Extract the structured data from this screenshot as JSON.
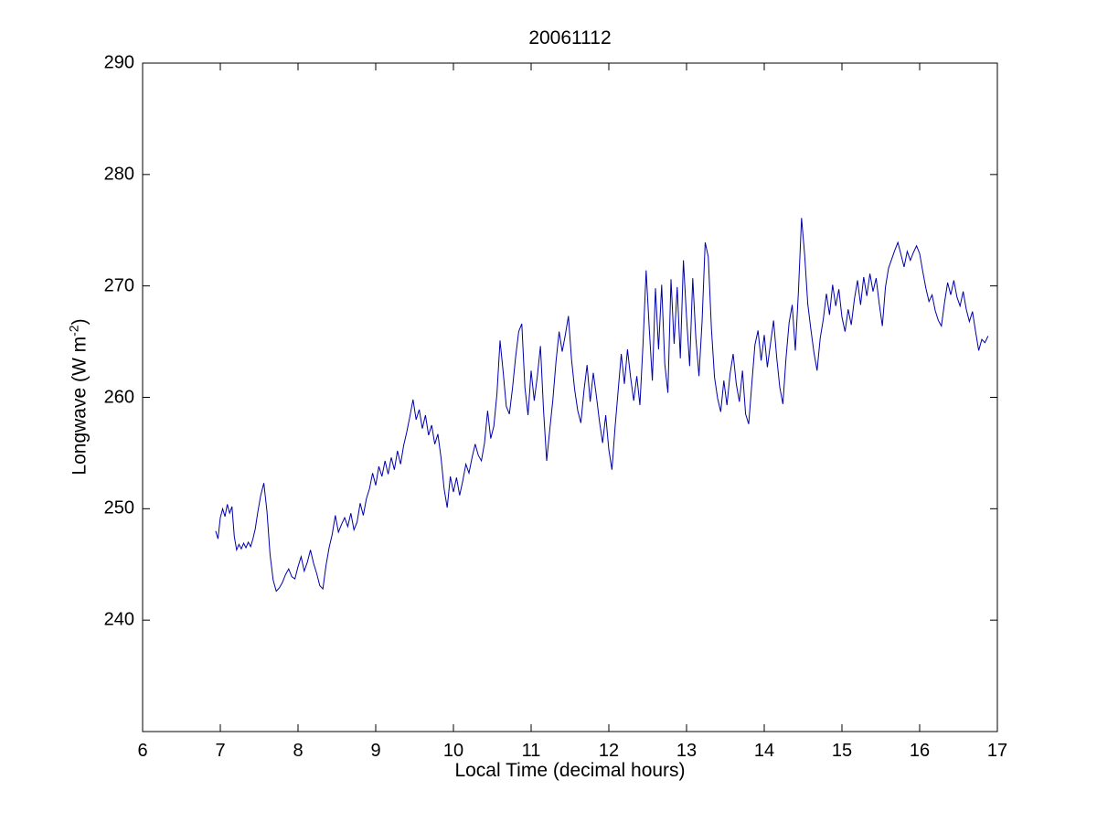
{
  "title": "20061112",
  "axes": {
    "xlabel": "Local Time (decimal hours)",
    "ylabel_main": "Longwave (W m",
    "ylabel_sup": "-2",
    "ylabel_end": ")",
    "x_ticks": [
      6,
      7,
      8,
      9,
      10,
      11,
      12,
      13,
      14,
      15,
      16,
      17
    ],
    "x_tick_labels": [
      "6",
      "7",
      "8",
      "9",
      "10",
      "11",
      "12",
      "13",
      "14",
      "15",
      "16",
      "17"
    ],
    "y_ticks": [
      240,
      250,
      260,
      270,
      280,
      290
    ],
    "y_tick_labels": [
      "240",
      "250",
      "260",
      "270",
      "280",
      "290"
    ]
  },
  "chart_data": {
    "type": "line",
    "title": "20061112",
    "xlabel": "Local Time (decimal hours)",
    "ylabel": "Longwave (W m^-2)",
    "xlim": [
      6,
      17
    ],
    "ylim": [
      230,
      290
    ],
    "grid": false,
    "legend": "none",
    "line_color": "#0000AA",
    "axis_color": "#000000",
    "series": [
      {
        "name": "longwave",
        "points": [
          [
            6.94,
            248.0
          ],
          [
            6.97,
            247.3
          ],
          [
            7.0,
            249.2
          ],
          [
            7.03,
            250.0
          ],
          [
            7.06,
            249.3
          ],
          [
            7.09,
            250.4
          ],
          [
            7.12,
            249.6
          ],
          [
            7.15,
            250.2
          ],
          [
            7.18,
            247.5
          ],
          [
            7.21,
            246.3
          ],
          [
            7.24,
            246.8
          ],
          [
            7.27,
            246.4
          ],
          [
            7.3,
            246.9
          ],
          [
            7.33,
            246.5
          ],
          [
            7.36,
            247.0
          ],
          [
            7.39,
            246.6
          ],
          [
            7.42,
            247.3
          ],
          [
            7.45,
            248.2
          ],
          [
            7.48,
            249.6
          ],
          [
            7.52,
            251.2
          ],
          [
            7.56,
            252.3
          ],
          [
            7.6,
            249.8
          ],
          [
            7.64,
            245.9
          ],
          [
            7.68,
            243.6
          ],
          [
            7.72,
            242.6
          ],
          [
            7.76,
            242.9
          ],
          [
            7.8,
            243.4
          ],
          [
            7.84,
            244.1
          ],
          [
            7.88,
            244.6
          ],
          [
            7.92,
            243.9
          ],
          [
            7.96,
            243.7
          ],
          [
            8.0,
            244.8
          ],
          [
            8.04,
            245.7
          ],
          [
            8.08,
            244.4
          ],
          [
            8.12,
            245.2
          ],
          [
            8.16,
            246.3
          ],
          [
            8.2,
            245.1
          ],
          [
            8.24,
            244.2
          ],
          [
            8.28,
            243.1
          ],
          [
            8.32,
            242.8
          ],
          [
            8.36,
            244.9
          ],
          [
            8.4,
            246.5
          ],
          [
            8.44,
            247.7
          ],
          [
            8.48,
            249.4
          ],
          [
            8.52,
            247.9
          ],
          [
            8.56,
            248.6
          ],
          [
            8.6,
            249.2
          ],
          [
            8.64,
            248.4
          ],
          [
            8.68,
            249.6
          ],
          [
            8.72,
            248.1
          ],
          [
            8.76,
            248.8
          ],
          [
            8.8,
            250.5
          ],
          [
            8.84,
            249.4
          ],
          [
            8.88,
            250.9
          ],
          [
            8.92,
            251.8
          ],
          [
            8.96,
            253.2
          ],
          [
            9.0,
            252.1
          ],
          [
            9.04,
            253.8
          ],
          [
            9.08,
            252.9
          ],
          [
            9.12,
            254.3
          ],
          [
            9.16,
            253.1
          ],
          [
            9.2,
            254.6
          ],
          [
            9.24,
            253.5
          ],
          [
            9.28,
            255.2
          ],
          [
            9.32,
            254.0
          ],
          [
            9.36,
            255.7
          ],
          [
            9.4,
            256.9
          ],
          [
            9.44,
            258.3
          ],
          [
            9.48,
            259.8
          ],
          [
            9.52,
            258.0
          ],
          [
            9.56,
            258.9
          ],
          [
            9.6,
            257.2
          ],
          [
            9.64,
            258.4
          ],
          [
            9.68,
            256.6
          ],
          [
            9.72,
            257.5
          ],
          [
            9.76,
            255.8
          ],
          [
            9.8,
            256.7
          ],
          [
            9.84,
            254.6
          ],
          [
            9.88,
            251.8
          ],
          [
            9.92,
            250.1
          ],
          [
            9.96,
            252.9
          ],
          [
            10.0,
            251.5
          ],
          [
            10.04,
            252.8
          ],
          [
            10.08,
            251.2
          ],
          [
            10.12,
            252.5
          ],
          [
            10.16,
            254.0
          ],
          [
            10.2,
            253.2
          ],
          [
            10.24,
            254.6
          ],
          [
            10.28,
            255.8
          ],
          [
            10.32,
            254.8
          ],
          [
            10.36,
            254.3
          ],
          [
            10.4,
            255.9
          ],
          [
            10.44,
            258.8
          ],
          [
            10.48,
            256.3
          ],
          [
            10.52,
            257.4
          ],
          [
            10.56,
            260.3
          ],
          [
            10.6,
            265.1
          ],
          [
            10.64,
            262.3
          ],
          [
            10.68,
            259.2
          ],
          [
            10.72,
            258.5
          ],
          [
            10.76,
            260.8
          ],
          [
            10.8,
            263.6
          ],
          [
            10.84,
            265.9
          ],
          [
            10.88,
            266.6
          ],
          [
            10.92,
            260.9
          ],
          [
            10.96,
            258.4
          ],
          [
            11.0,
            262.4
          ],
          [
            11.04,
            259.7
          ],
          [
            11.08,
            261.9
          ],
          [
            11.12,
            264.6
          ],
          [
            11.16,
            258.8
          ],
          [
            11.2,
            254.3
          ],
          [
            11.24,
            257.1
          ],
          [
            11.28,
            259.8
          ],
          [
            11.32,
            263.2
          ],
          [
            11.36,
            265.9
          ],
          [
            11.4,
            264.1
          ],
          [
            11.44,
            265.6
          ],
          [
            11.48,
            267.3
          ],
          [
            11.52,
            263.4
          ],
          [
            11.56,
            260.7
          ],
          [
            11.6,
            258.8
          ],
          [
            11.64,
            257.7
          ],
          [
            11.68,
            260.6
          ],
          [
            11.72,
            262.9
          ],
          [
            11.76,
            259.6
          ],
          [
            11.8,
            262.2
          ],
          [
            11.84,
            260.1
          ],
          [
            11.88,
            257.8
          ],
          [
            11.92,
            255.9
          ],
          [
            11.96,
            258.4
          ],
          [
            12.0,
            255.3
          ],
          [
            12.04,
            253.5
          ],
          [
            12.08,
            257.3
          ],
          [
            12.12,
            260.6
          ],
          [
            12.16,
            263.9
          ],
          [
            12.2,
            261.2
          ],
          [
            12.24,
            264.3
          ],
          [
            12.28,
            261.8
          ],
          [
            12.32,
            259.7
          ],
          [
            12.36,
            261.9
          ],
          [
            12.4,
            259.3
          ],
          [
            12.44,
            264.8
          ],
          [
            12.48,
            271.4
          ],
          [
            12.52,
            266.2
          ],
          [
            12.56,
            261.5
          ],
          [
            12.6,
            269.8
          ],
          [
            12.64,
            264.3
          ],
          [
            12.68,
            270.1
          ],
          [
            12.72,
            263.0
          ],
          [
            12.76,
            260.4
          ],
          [
            12.8,
            270.6
          ],
          [
            12.84,
            264.8
          ],
          [
            12.88,
            269.9
          ],
          [
            12.92,
            263.5
          ],
          [
            12.96,
            272.3
          ],
          [
            13.0,
            267.2
          ],
          [
            13.04,
            262.8
          ],
          [
            13.08,
            270.7
          ],
          [
            13.12,
            265.3
          ],
          [
            13.16,
            261.9
          ],
          [
            13.2,
            266.8
          ],
          [
            13.24,
            273.9
          ],
          [
            13.28,
            272.6
          ],
          [
            13.32,
            266.2
          ],
          [
            13.36,
            261.8
          ],
          [
            13.4,
            259.9
          ],
          [
            13.44,
            258.7
          ],
          [
            13.48,
            261.5
          ],
          [
            13.52,
            259.3
          ],
          [
            13.56,
            262.1
          ],
          [
            13.6,
            263.9
          ],
          [
            13.64,
            261.2
          ],
          [
            13.68,
            259.6
          ],
          [
            13.72,
            262.4
          ],
          [
            13.76,
            258.5
          ],
          [
            13.8,
            257.6
          ],
          [
            13.84,
            261.2
          ],
          [
            13.88,
            264.7
          ],
          [
            13.92,
            266.0
          ],
          [
            13.96,
            263.3
          ],
          [
            14.0,
            265.6
          ],
          [
            14.04,
            262.7
          ],
          [
            14.08,
            264.8
          ],
          [
            14.12,
            266.9
          ],
          [
            14.16,
            263.6
          ],
          [
            14.2,
            260.9
          ],
          [
            14.24,
            259.4
          ],
          [
            14.28,
            263.5
          ],
          [
            14.32,
            266.7
          ],
          [
            14.36,
            268.3
          ],
          [
            14.4,
            264.2
          ],
          [
            14.44,
            269.5
          ],
          [
            14.48,
            276.1
          ],
          [
            14.52,
            272.8
          ],
          [
            14.56,
            268.4
          ],
          [
            14.6,
            266.1
          ],
          [
            14.64,
            264.0
          ],
          [
            14.68,
            262.4
          ],
          [
            14.72,
            265.3
          ],
          [
            14.76,
            267.0
          ],
          [
            14.8,
            269.3
          ],
          [
            14.84,
            267.4
          ],
          [
            14.88,
            270.1
          ],
          [
            14.92,
            268.2
          ],
          [
            14.96,
            269.7
          ],
          [
            15.0,
            267.2
          ],
          [
            15.04,
            265.9
          ],
          [
            15.08,
            267.9
          ],
          [
            15.12,
            266.5
          ],
          [
            15.16,
            268.8
          ],
          [
            15.2,
            270.5
          ],
          [
            15.24,
            268.3
          ],
          [
            15.28,
            270.8
          ],
          [
            15.32,
            269.1
          ],
          [
            15.36,
            271.1
          ],
          [
            15.4,
            269.5
          ],
          [
            15.44,
            270.7
          ],
          [
            15.48,
            268.4
          ],
          [
            15.52,
            266.4
          ],
          [
            15.56,
            269.9
          ],
          [
            15.6,
            271.6
          ],
          [
            15.64,
            272.4
          ],
          [
            15.68,
            273.2
          ],
          [
            15.72,
            273.9
          ],
          [
            15.76,
            272.8
          ],
          [
            15.8,
            271.7
          ],
          [
            15.84,
            273.1
          ],
          [
            15.88,
            272.3
          ],
          [
            15.92,
            273.0
          ],
          [
            15.96,
            273.6
          ],
          [
            16.0,
            272.9
          ],
          [
            16.04,
            271.3
          ],
          [
            16.08,
            269.8
          ],
          [
            16.12,
            268.6
          ],
          [
            16.16,
            269.2
          ],
          [
            16.2,
            267.8
          ],
          [
            16.24,
            266.9
          ],
          [
            16.28,
            266.4
          ],
          [
            16.32,
            268.5
          ],
          [
            16.36,
            270.3
          ],
          [
            16.4,
            269.2
          ],
          [
            16.44,
            270.5
          ],
          [
            16.48,
            269.0
          ],
          [
            16.52,
            268.2
          ],
          [
            16.56,
            269.5
          ],
          [
            16.6,
            267.9
          ],
          [
            16.64,
            266.8
          ],
          [
            16.68,
            267.7
          ],
          [
            16.72,
            265.9
          ],
          [
            16.76,
            264.2
          ],
          [
            16.8,
            265.2
          ],
          [
            16.84,
            264.9
          ],
          [
            16.88,
            265.5
          ]
        ]
      }
    ]
  }
}
